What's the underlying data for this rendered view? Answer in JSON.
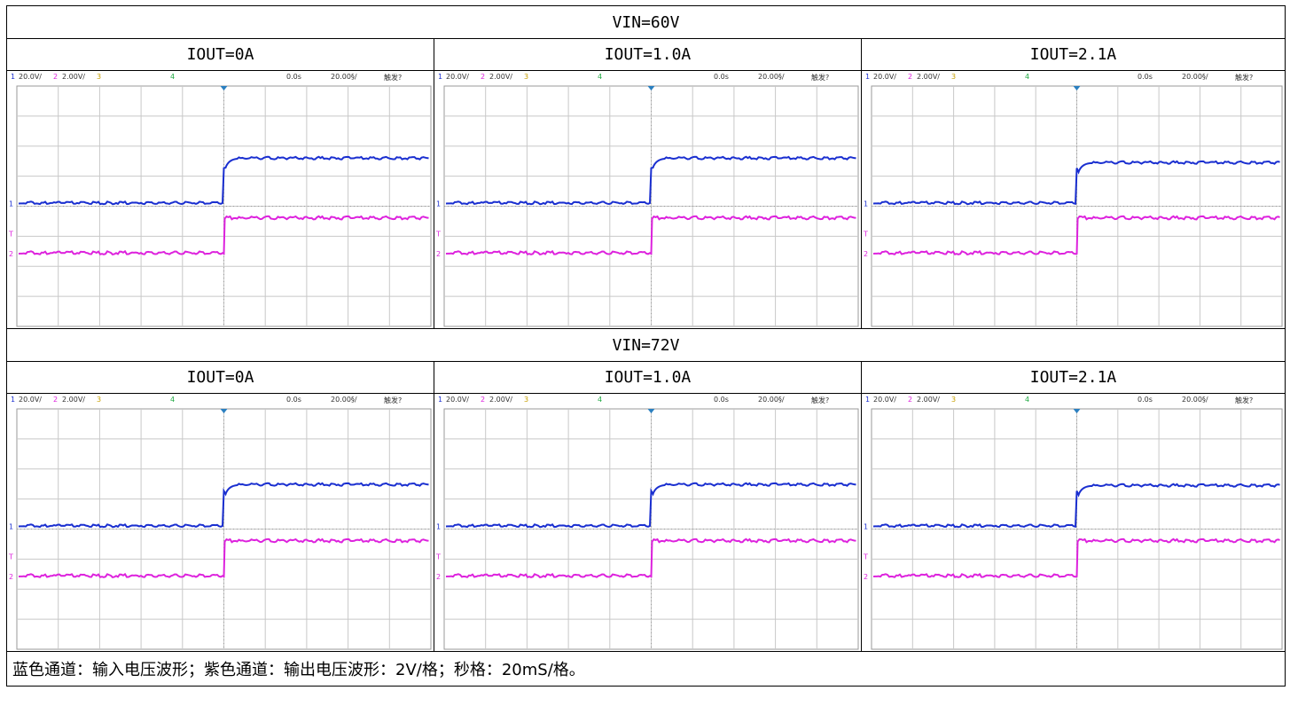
{
  "sections": [
    {
      "title": "VIN=60V",
      "cols": [
        {
          "label": "IOUT=0A"
        },
        {
          "label": "IOUT=1.0A"
        },
        {
          "label": "IOUT=2.1A"
        }
      ]
    },
    {
      "title": "VIN=72V",
      "cols": [
        {
          "label": "IOUT=0A"
        },
        {
          "label": "IOUT=1.0A"
        },
        {
          "label": "IOUT=2.1A"
        }
      ]
    }
  ],
  "scope_status": {
    "ch1_num": "1",
    "ch1_scale": "20.0V/",
    "ch2_num": "2",
    "ch2_scale": "2.00V/",
    "ch3_num": "3",
    "ch4_num": "4",
    "delay": "0.0s",
    "timebase": "20.00§/",
    "trigger": "触发?"
  },
  "footer_note": "蓝色通道：输入电压波形；紫色通道：输出电压波形：2V/格；秒格：20mS/格。",
  "colors": {
    "blue_trace": "#1a2fd0",
    "magenta_trace": "#dd22dd",
    "grid": "#c8c8c8",
    "trigger_marker": "#2a7fc0",
    "ch1_label": "#1a2fd0",
    "ch2_label": "#dd22dd",
    "ch3_label": "#c8a000",
    "ch4_label": "#22aa44"
  }
}
